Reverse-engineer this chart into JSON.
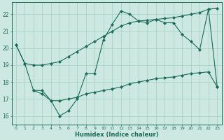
{
  "xlabel": "Humidex (Indice chaleur)",
  "xlim": [
    -0.5,
    23.5
  ],
  "ylim": [
    15.5,
    22.7
  ],
  "yticks": [
    16,
    17,
    18,
    19,
    20,
    21,
    22
  ],
  "xticks": [
    0,
    1,
    2,
    3,
    4,
    5,
    6,
    7,
    8,
    9,
    10,
    11,
    12,
    13,
    14,
    15,
    16,
    17,
    18,
    19,
    20,
    21,
    22,
    23
  ],
  "xtick_labels": [
    "0",
    "1",
    "2",
    "3",
    "4",
    "5",
    "6",
    "7",
    "8",
    "9",
    "10",
    "11",
    "12",
    "13",
    "14",
    "15",
    "16",
    "17",
    "18",
    "19",
    "20",
    "21",
    "22",
    "23"
  ],
  "background_color": "#cde8e0",
  "grid_color": "#a8d4c8",
  "line_color": "#1a6b5a",
  "line_upper": {
    "x": [
      0,
      1,
      2,
      3,
      4,
      5,
      6,
      7,
      8,
      9,
      10,
      11,
      12,
      13,
      14,
      15,
      16,
      17,
      18,
      19,
      20,
      21,
      22,
      23
    ],
    "y": [
      20.2,
      19.1,
      19.0,
      19.0,
      19.1,
      19.2,
      19.5,
      19.8,
      20.1,
      20.4,
      20.7,
      21.0,
      21.3,
      21.5,
      21.6,
      21.65,
      21.7,
      21.75,
      21.8,
      21.9,
      22.0,
      22.1,
      22.3,
      22.35
    ]
  },
  "line_mid": {
    "x": [
      0,
      1,
      2,
      3,
      4,
      5,
      6,
      7,
      8,
      9,
      10,
      11,
      12,
      13,
      14,
      15,
      16,
      17,
      18,
      19,
      20,
      21,
      22,
      23
    ],
    "y": [
      20.2,
      19.1,
      17.5,
      17.5,
      16.9,
      16.0,
      16.3,
      17.0,
      18.5,
      18.5,
      20.5,
      21.4,
      22.2,
      22.0,
      21.6,
      21.5,
      21.7,
      21.5,
      21.5,
      20.8,
      20.4,
      19.9,
      22.3,
      17.7
    ]
  },
  "line_lower": {
    "x": [
      2,
      3,
      4,
      5,
      6,
      7,
      8,
      9,
      10,
      11,
      12,
      13,
      14,
      15,
      16,
      17,
      18,
      19,
      20,
      21,
      22,
      23
    ],
    "y": [
      17.5,
      17.3,
      16.9,
      16.9,
      17.0,
      17.1,
      17.3,
      17.4,
      17.5,
      17.6,
      17.7,
      17.9,
      18.0,
      18.1,
      18.2,
      18.25,
      18.3,
      18.4,
      18.5,
      18.55,
      18.6,
      17.7
    ]
  }
}
